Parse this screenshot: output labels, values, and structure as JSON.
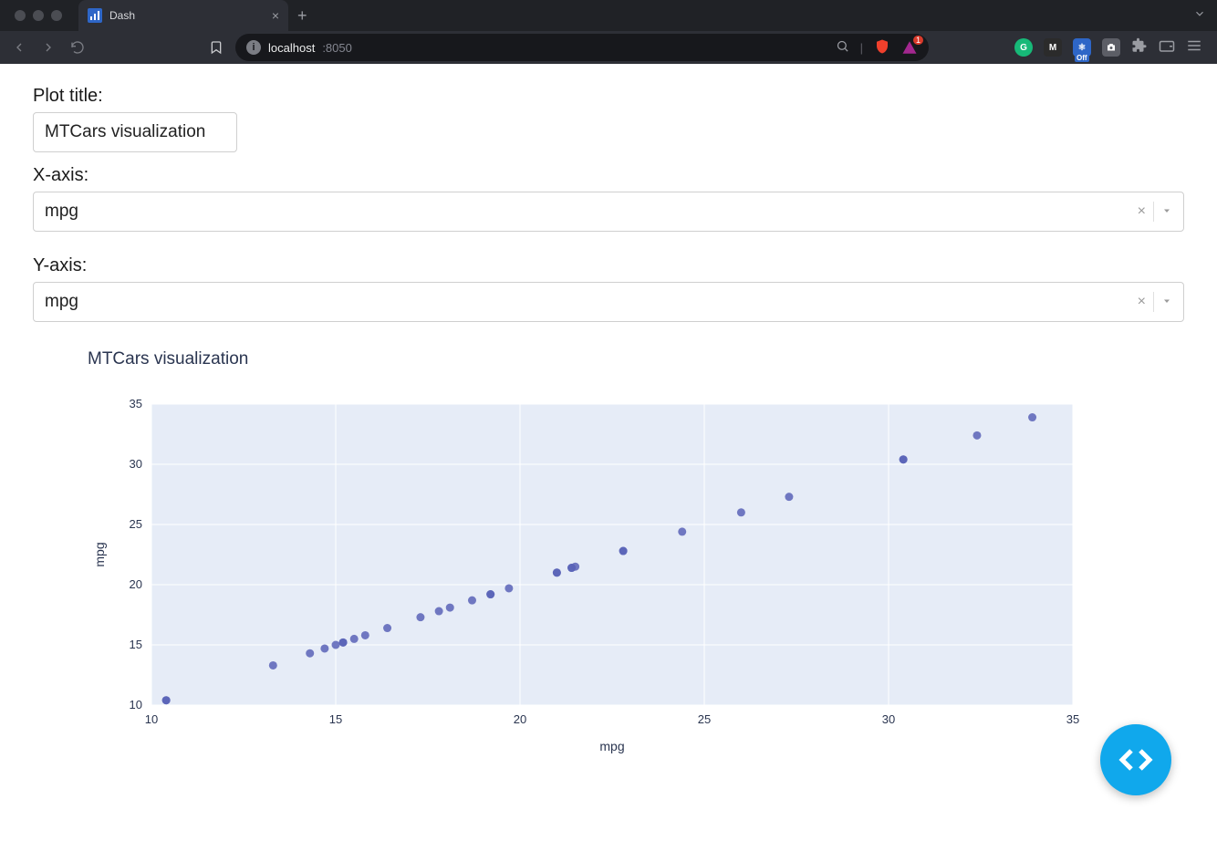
{
  "browser": {
    "tab_title": "Dash",
    "url_host": "localhost",
    "url_port": ":8050",
    "badge_count": "1",
    "ext_off_label": "Off"
  },
  "form": {
    "title_label": "Plot title:",
    "title_value": "MTCars visualization",
    "x_label": "X-axis:",
    "x_value": "mpg",
    "y_label": "Y-axis:",
    "y_value": "mpg"
  },
  "chart": {
    "type": "scatter",
    "title": "MTCars visualization",
    "xlabel": "mpg",
    "ylabel": "mpg",
    "xlim": [
      10,
      35
    ],
    "ylim": [
      10,
      35
    ],
    "xtick_step": 5,
    "ytick_step": 5,
    "background_color": "#e6ecf7",
    "grid_color": "#ffffff",
    "marker_color": "#5963b7",
    "marker_radius": 4.5,
    "title_color": "#2a3550",
    "label_color": "#2a3550",
    "tick_fontsize": 13,
    "label_fontsize": 14,
    "title_fontsize": 19,
    "points": [
      [
        10.4,
        10.4
      ],
      [
        10.4,
        10.4
      ],
      [
        13.3,
        13.3
      ],
      [
        14.3,
        14.3
      ],
      [
        14.7,
        14.7
      ],
      [
        15.0,
        15.0
      ],
      [
        15.2,
        15.2
      ],
      [
        15.2,
        15.2
      ],
      [
        15.5,
        15.5
      ],
      [
        15.8,
        15.8
      ],
      [
        16.4,
        16.4
      ],
      [
        17.3,
        17.3
      ],
      [
        17.8,
        17.8
      ],
      [
        18.1,
        18.1
      ],
      [
        18.7,
        18.7
      ],
      [
        19.2,
        19.2
      ],
      [
        19.2,
        19.2
      ],
      [
        19.7,
        19.7
      ],
      [
        21.0,
        21.0
      ],
      [
        21.0,
        21.0
      ],
      [
        21.4,
        21.4
      ],
      [
        21.4,
        21.4
      ],
      [
        21.5,
        21.5
      ],
      [
        22.8,
        22.8
      ],
      [
        22.8,
        22.8
      ],
      [
        24.4,
        24.4
      ],
      [
        26.0,
        26.0
      ],
      [
        27.3,
        27.3
      ],
      [
        30.4,
        30.4
      ],
      [
        30.4,
        30.4
      ],
      [
        32.4,
        32.4
      ],
      [
        33.9,
        33.9
      ]
    ]
  }
}
